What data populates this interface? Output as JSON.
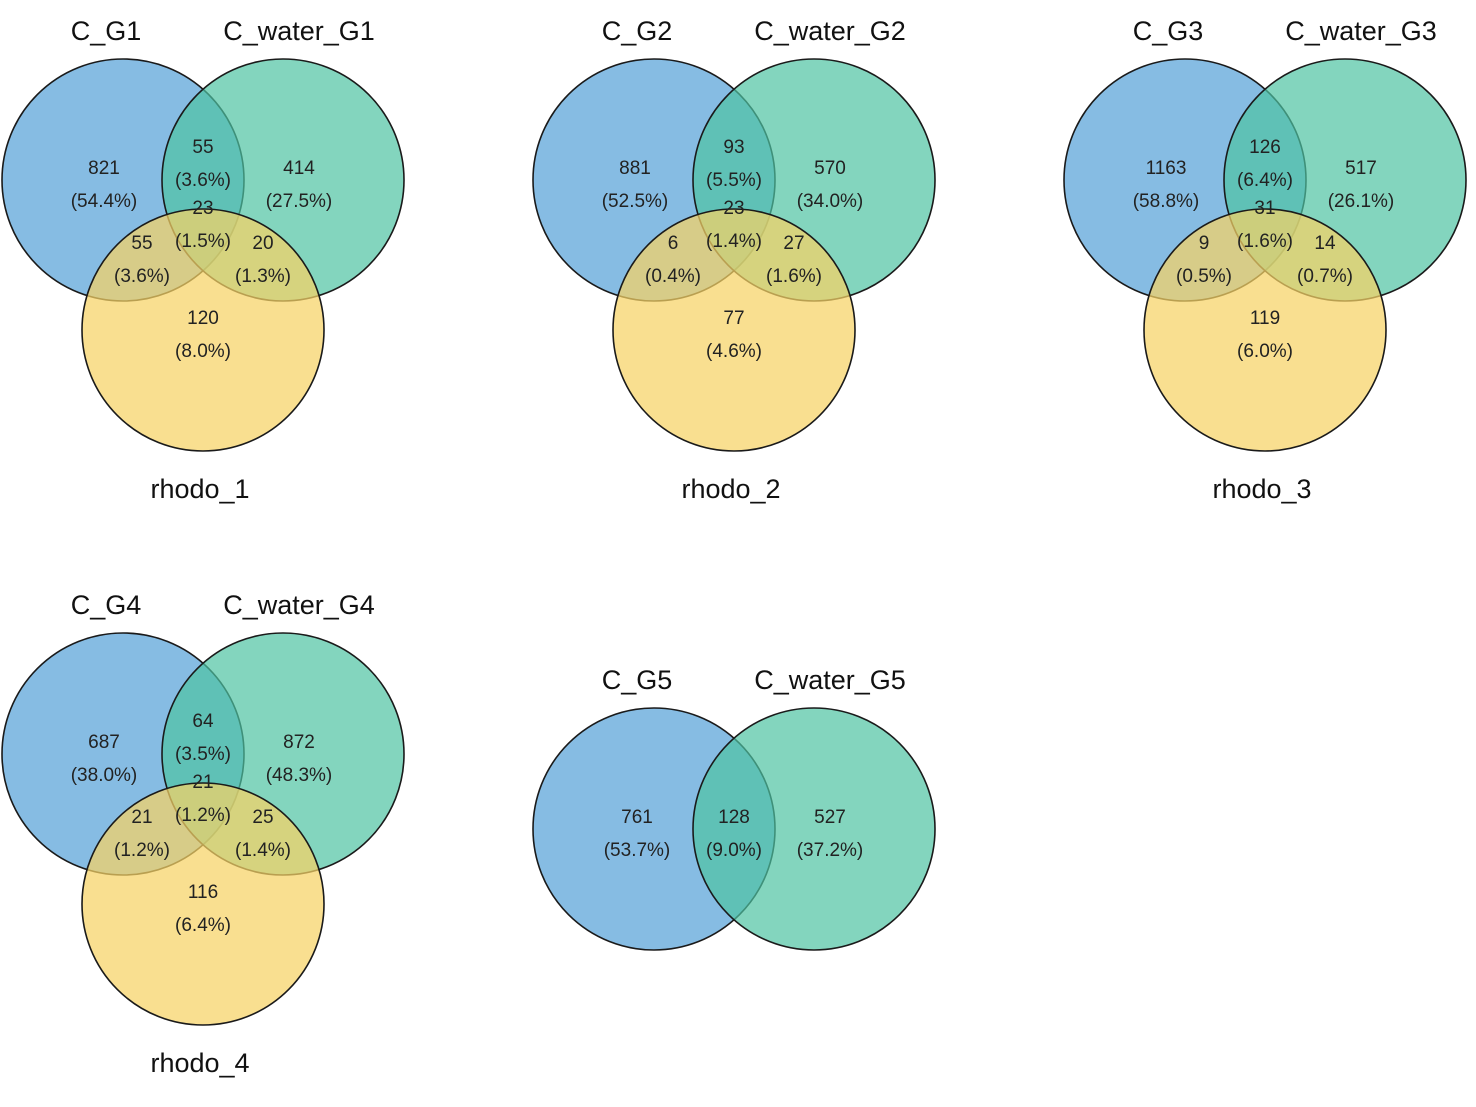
{
  "colors": {
    "set_a": "#5DA5D9",
    "set_b": "#4EC3A2",
    "set_c": "#F6D265"
  },
  "diagrams": [
    {
      "sets": [
        "C_G1",
        "C_water_G1",
        "rhodo_1"
      ],
      "regions": {
        "a_only": {
          "count": "821",
          "pct": "(54.4%)"
        },
        "b_only": {
          "count": "414",
          "pct": "(27.5%)"
        },
        "ab": {
          "count": "55",
          "pct": "(3.6%)"
        },
        "abc": {
          "count": "23",
          "pct": "(1.5%)"
        },
        "ac": {
          "count": "55",
          "pct": "(3.6%)"
        },
        "bc": {
          "count": "20",
          "pct": "(1.3%)"
        },
        "c_only": {
          "count": "120",
          "pct": "(8.0%)"
        }
      }
    },
    {
      "sets": [
        "C_G2",
        "C_water_G2",
        "rhodo_2"
      ],
      "regions": {
        "a_only": {
          "count": "881",
          "pct": "(52.5%)"
        },
        "b_only": {
          "count": "570",
          "pct": "(34.0%)"
        },
        "ab": {
          "count": "93",
          "pct": "(5.5%)"
        },
        "abc": {
          "count": "23",
          "pct": "(1.4%)"
        },
        "ac": {
          "count": "6",
          "pct": "(0.4%)"
        },
        "bc": {
          "count": "27",
          "pct": "(1.6%)"
        },
        "c_only": {
          "count": "77",
          "pct": "(4.6%)"
        }
      }
    },
    {
      "sets": [
        "C_G3",
        "C_water_G3",
        "rhodo_3"
      ],
      "regions": {
        "a_only": {
          "count": "1163",
          "pct": "(58.8%)"
        },
        "b_only": {
          "count": "517",
          "pct": "(26.1%)"
        },
        "ab": {
          "count": "126",
          "pct": "(6.4%)"
        },
        "abc": {
          "count": "31",
          "pct": "(1.6%)"
        },
        "ac": {
          "count": "9",
          "pct": "(0.5%)"
        },
        "bc": {
          "count": "14",
          "pct": "(0.7%)"
        },
        "c_only": {
          "count": "119",
          "pct": "(6.0%)"
        }
      }
    },
    {
      "sets": [
        "C_G4",
        "C_water_G4",
        "rhodo_4"
      ],
      "regions": {
        "a_only": {
          "count": "687",
          "pct": "(38.0%)"
        },
        "b_only": {
          "count": "872",
          "pct": "(48.3%)"
        },
        "ab": {
          "count": "64",
          "pct": "(3.5%)"
        },
        "abc": {
          "count": "21",
          "pct": "(1.2%)"
        },
        "ac": {
          "count": "21",
          "pct": "(1.2%)"
        },
        "bc": {
          "count": "25",
          "pct": "(1.4%)"
        },
        "c_only": {
          "count": "116",
          "pct": "(6.4%)"
        }
      }
    },
    {
      "sets": [
        "C_G5",
        "C_water_G5"
      ],
      "regions": {
        "a_only": {
          "count": "761",
          "pct": "(53.7%)"
        },
        "ab": {
          "count": "128",
          "pct": "(9.0%)"
        },
        "b_only": {
          "count": "527",
          "pct": "(37.2%)"
        }
      }
    }
  ]
}
